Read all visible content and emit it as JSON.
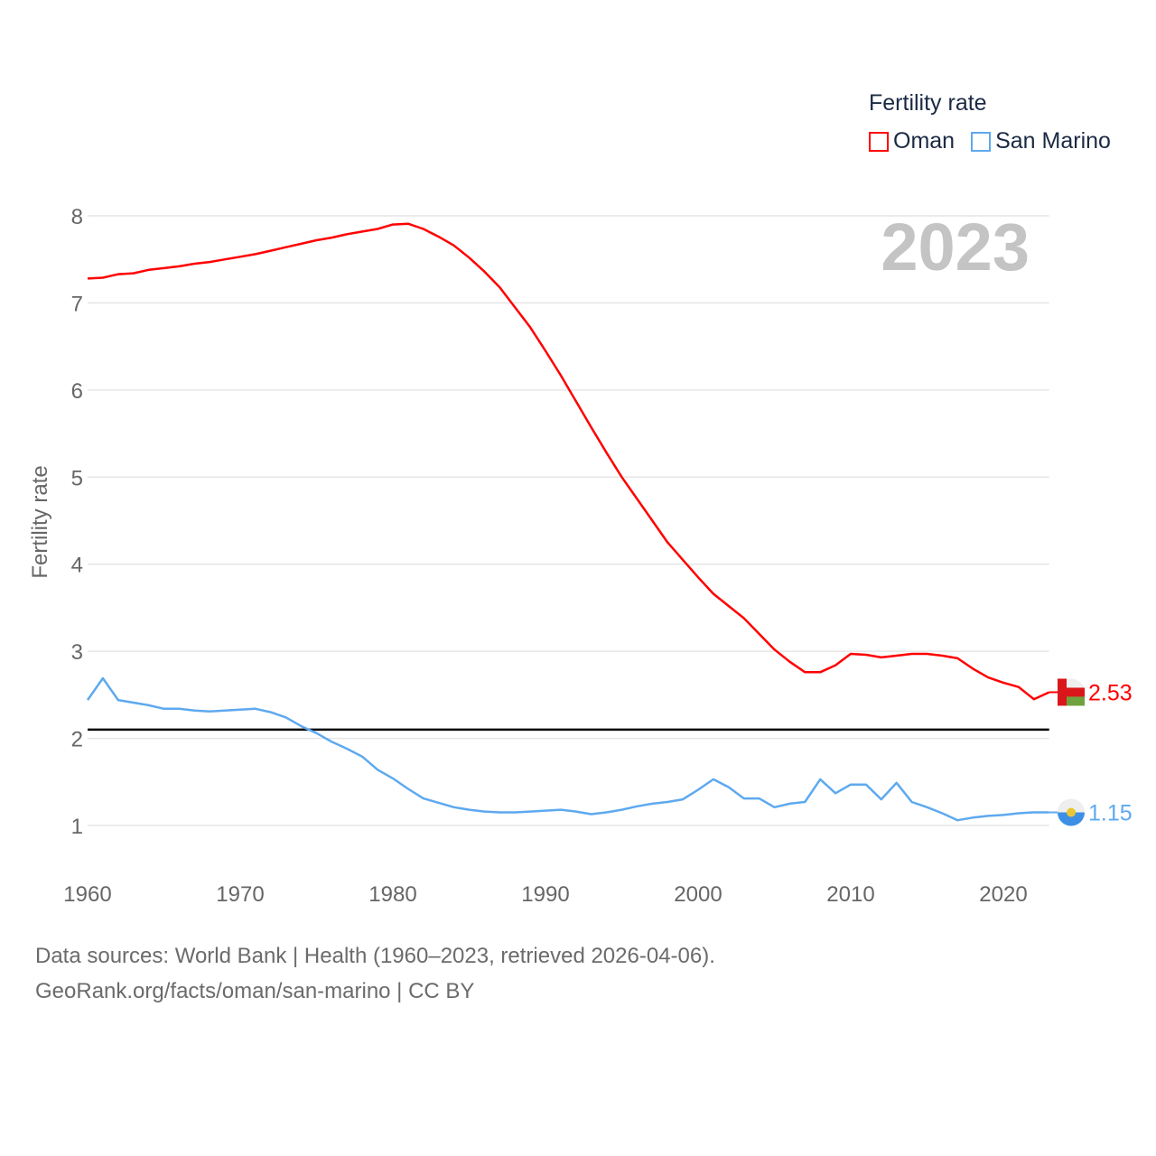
{
  "chart_data": {
    "type": "line",
    "title": "Fertility rate",
    "year_label": "2023",
    "ylabel": "Fertility rate",
    "xlabel": "",
    "xlim": [
      1960,
      2023
    ],
    "ylim": [
      0.5,
      8.1
    ],
    "x_ticks": [
      1960,
      1970,
      1980,
      1990,
      2000,
      2010,
      2020
    ],
    "y_ticks": [
      1,
      2,
      3,
      4,
      5,
      6,
      7,
      8
    ],
    "grid": true,
    "legend_position": "top-right",
    "reference_line": {
      "value": 2.1,
      "color": "#000000"
    },
    "x": [
      1960,
      1961,
      1962,
      1963,
      1964,
      1965,
      1966,
      1967,
      1968,
      1969,
      1970,
      1971,
      1972,
      1973,
      1974,
      1975,
      1976,
      1977,
      1978,
      1979,
      1980,
      1981,
      1982,
      1983,
      1984,
      1985,
      1986,
      1987,
      1988,
      1989,
      1990,
      1991,
      1992,
      1993,
      1994,
      1995,
      1996,
      1997,
      1998,
      1999,
      2000,
      2001,
      2002,
      2003,
      2004,
      2005,
      2006,
      2007,
      2008,
      2009,
      2010,
      2011,
      2012,
      2013,
      2014,
      2015,
      2016,
      2017,
      2018,
      2019,
      2020,
      2021,
      2022,
      2023
    ],
    "series": [
      {
        "name": "Oman",
        "color": "#ff0000",
        "end_label": "2.53",
        "values": [
          7.28,
          7.29,
          7.33,
          7.34,
          7.38,
          7.4,
          7.42,
          7.45,
          7.47,
          7.5,
          7.53,
          7.56,
          7.6,
          7.64,
          7.68,
          7.72,
          7.75,
          7.79,
          7.82,
          7.85,
          7.9,
          7.91,
          7.85,
          7.76,
          7.66,
          7.52,
          7.36,
          7.18,
          6.95,
          6.72,
          6.45,
          6.17,
          5.87,
          5.57,
          5.28,
          5.0,
          4.75,
          4.5,
          4.25,
          4.05,
          3.85,
          3.66,
          3.52,
          3.38,
          3.2,
          3.02,
          2.88,
          2.76,
          2.76,
          2.84,
          2.97,
          2.96,
          2.93,
          2.95,
          2.97,
          2.97,
          2.95,
          2.92,
          2.8,
          2.7,
          2.64,
          2.59,
          2.45,
          2.53
        ]
      },
      {
        "name": "San Marino",
        "color": "#5ea9ef",
        "end_label": "1.15",
        "values": [
          2.44,
          2.69,
          2.44,
          2.41,
          2.38,
          2.34,
          2.34,
          2.32,
          2.31,
          2.32,
          2.33,
          2.34,
          2.3,
          2.24,
          2.14,
          2.06,
          1.96,
          1.88,
          1.79,
          1.64,
          1.54,
          1.42,
          1.31,
          1.26,
          1.21,
          1.18,
          1.16,
          1.15,
          1.15,
          1.16,
          1.17,
          1.18,
          1.16,
          1.13,
          1.15,
          1.18,
          1.22,
          1.25,
          1.27,
          1.3,
          1.41,
          1.53,
          1.44,
          1.31,
          1.31,
          1.21,
          1.25,
          1.27,
          1.53,
          1.37,
          1.47,
          1.47,
          1.3,
          1.49,
          1.27,
          1.21,
          1.14,
          1.06,
          1.09,
          1.11,
          1.12,
          1.14,
          1.15,
          1.15
        ]
      }
    ]
  },
  "footer": {
    "line1": "Data sources: World Bank | Health (1960–2023, retrieved 2026-04-06).",
    "line2": "GeoRank.org/facts/oman/san-marino | CC BY"
  }
}
